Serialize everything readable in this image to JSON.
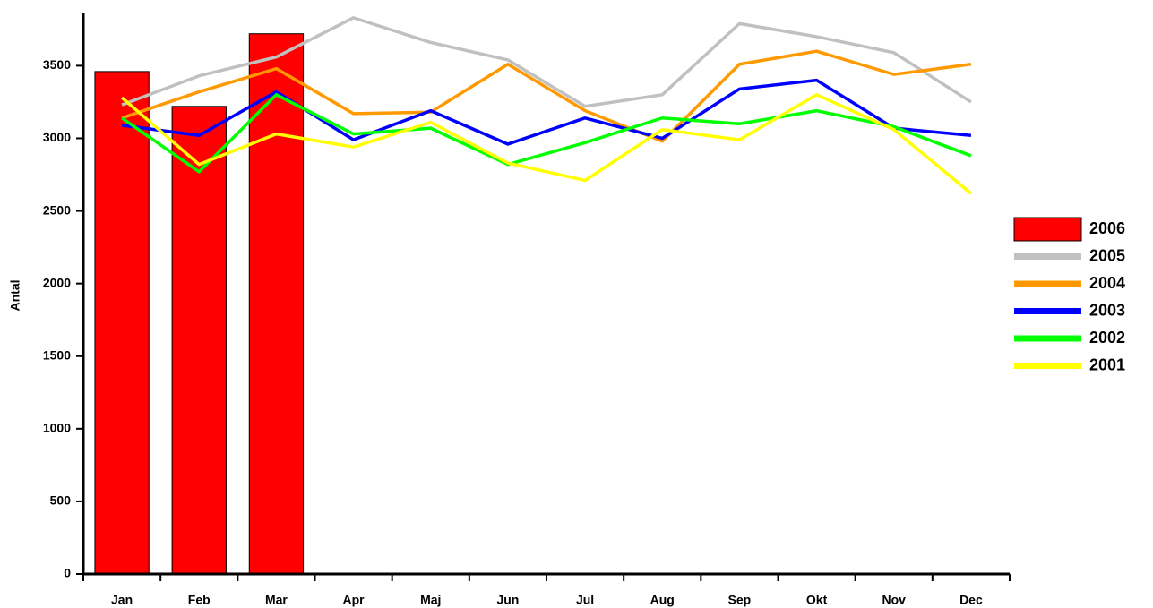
{
  "chart_data": {
    "type": "combo",
    "y_label": "Antal",
    "categories": [
      "Jan",
      "Feb",
      "Mar",
      "Apr",
      "Maj",
      "Jun",
      "Jul",
      "Aug",
      "Sep",
      "Okt",
      "Nov",
      "Dec"
    ],
    "ylim": [
      0,
      3860
    ],
    "yticks": [
      0,
      500,
      1000,
      1500,
      2000,
      2500,
      3000,
      3500
    ],
    "legend": "right",
    "series": [
      {
        "name": "2006",
        "type": "bar",
        "color": "#ff0000",
        "values": [
          3460,
          3220,
          3720,
          null,
          null,
          null,
          null,
          null,
          null,
          null,
          null,
          null
        ]
      },
      {
        "name": "2005",
        "type": "line",
        "color": "#c0c0c0",
        "values": [
          3230,
          3430,
          3560,
          3830,
          3660,
          3540,
          3220,
          3300,
          3790,
          3700,
          3590,
          3250
        ]
      },
      {
        "name": "2004",
        "type": "line",
        "color": "#ff9900",
        "values": [
          3140,
          3320,
          3480,
          3170,
          3180,
          3510,
          3190,
          2980,
          3510,
          3600,
          3440,
          3510
        ]
      },
      {
        "name": "2003",
        "type": "line",
        "color": "#0000ff",
        "values": [
          3090,
          3020,
          3320,
          2990,
          3190,
          2960,
          3140,
          3000,
          3340,
          3400,
          3070,
          3020
        ]
      },
      {
        "name": "2002",
        "type": "line",
        "color": "#00ff00",
        "values": [
          3140,
          2770,
          3300,
          3030,
          3070,
          2820,
          2970,
          3140,
          3100,
          3190,
          3080,
          2880
        ]
      },
      {
        "name": "2001",
        "type": "line",
        "color": "#ffff00",
        "values": [
          3280,
          2820,
          3030,
          2940,
          3110,
          2830,
          2710,
          3060,
          2990,
          3300,
          3060,
          2620
        ]
      }
    ]
  }
}
